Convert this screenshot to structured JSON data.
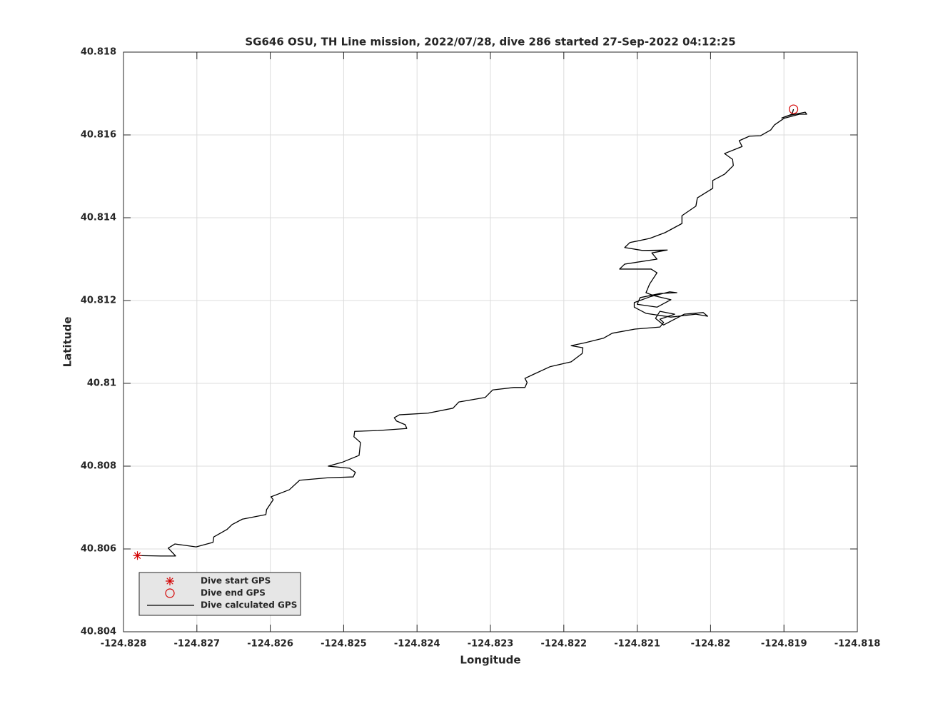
{
  "chart_data": {
    "type": "line",
    "title": "SG646 OSU, TH Line mission, 2022/07/28, dive 286 started 27-Sep-2022 04:12:25",
    "xlabel": "Longitude",
    "ylabel": "Latitude",
    "xlim": [
      -124.828,
      -124.818
    ],
    "ylim": [
      40.804,
      40.818
    ],
    "xticks": [
      -124.828,
      -124.827,
      -124.826,
      -124.825,
      -124.824,
      -124.823,
      -124.822,
      -124.821,
      -124.82,
      -124.819,
      -124.818
    ],
    "yticks": [
      40.804,
      40.806,
      40.808,
      40.81,
      40.812,
      40.814,
      40.816,
      40.818
    ],
    "grid": true,
    "legend": "southwest",
    "series": [
      {
        "name": "Dive start GPS",
        "color": "#d40000",
        "marker": "asterisk",
        "x": [
          -124.82781
        ],
        "values": [
          40.80584
        ]
      },
      {
        "name": "Dive end GPS",
        "color": "#d40000",
        "marker": "circle",
        "x": [
          -124.81887
        ],
        "values": [
          40.81662
        ]
      },
      {
        "name": "Dive calculated GPS",
        "color": "#000000",
        "x": [
          -124.82781,
          -124.82749,
          -124.82729,
          -124.82739,
          -124.8273,
          -124.82701,
          -124.82678,
          -124.82677,
          -124.82659,
          -124.82652,
          -124.82638,
          -124.82606,
          -124.82605,
          -124.82596,
          -124.82599,
          -124.82574,
          -124.8256,
          -124.82521,
          -124.82487,
          -124.82484,
          -124.82492,
          -124.82521,
          -124.82501,
          -124.82479,
          -124.82477,
          -124.82486,
          -124.82485,
          -124.82453,
          -124.82414,
          -124.82416,
          -124.82428,
          -124.82431,
          -124.82424,
          -124.82385,
          -124.82351,
          -124.82343,
          -124.82307,
          -124.82297,
          -124.82268,
          -124.82253,
          -124.8225,
          -124.82253,
          -124.82241,
          -124.82219,
          -124.8219,
          -124.82175,
          -124.82174,
          -124.8219,
          -124.82171,
          -124.82146,
          -124.82134,
          -124.82103,
          -124.82069,
          -124.82064,
          -124.82069,
          -124.82049,
          -124.82069,
          -124.82075,
          -124.82064,
          -124.82036,
          -124.8201,
          -124.82004,
          -124.8202,
          -124.82054,
          -124.82088,
          -124.82104,
          -124.82104,
          -124.82081,
          -124.82056,
          -124.82046,
          -124.82069,
          -124.82096,
          -124.821,
          -124.82073,
          -124.82054,
          -124.82078,
          -124.82088,
          -124.82083,
          -124.82073,
          -124.82081,
          -124.82124,
          -124.82117,
          -124.82073,
          -124.8208,
          -124.82059,
          -124.82093,
          -124.82117,
          -124.8211,
          -124.82083,
          -124.82062,
          -124.82039,
          -124.82039,
          -124.8202,
          -124.82018,
          -124.81997,
          -124.81997,
          -124.81981,
          -124.81969,
          -124.8197,
          -124.81981,
          -124.81957,
          -124.81961,
          -124.81947,
          -124.81932,
          -124.81918,
          -124.81913,
          -124.819,
          -124.81879,
          -124.81869,
          -124.81871,
          -124.81893,
          -124.81903,
          -124.81889,
          -124.81887
        ],
        "values": [
          40.80584,
          40.80583,
          40.80583,
          40.80602,
          40.80612,
          40.80605,
          40.80616,
          40.80629,
          40.80647,
          40.80659,
          40.80672,
          40.80683,
          40.80695,
          40.80719,
          40.80726,
          40.80743,
          40.80766,
          40.80772,
          40.80774,
          40.80785,
          40.80795,
          40.808,
          40.8081,
          40.80826,
          40.80857,
          40.80871,
          40.80884,
          40.80886,
          40.80891,
          40.809,
          40.80909,
          40.80917,
          40.80924,
          40.80928,
          40.8094,
          40.80955,
          40.80966,
          40.80984,
          40.8099,
          40.8099,
          40.81002,
          40.81012,
          40.81022,
          40.8104,
          40.81052,
          40.81072,
          40.81086,
          40.81091,
          40.81098,
          40.81109,
          40.81121,
          40.81131,
          40.81136,
          40.81147,
          40.81155,
          40.81167,
          40.81174,
          40.81157,
          40.81141,
          40.81167,
          40.81171,
          40.81162,
          40.81167,
          40.8116,
          40.81169,
          40.81184,
          40.81195,
          40.8121,
          40.81221,
          40.81219,
          40.81217,
          40.81207,
          40.81191,
          40.81184,
          40.81202,
          40.81212,
          40.81219,
          40.8124,
          40.81267,
          40.81276,
          40.81276,
          40.81288,
          40.813,
          40.81315,
          40.81322,
          40.81321,
          40.81328,
          40.8134,
          40.8135,
          40.81364,
          40.81386,
          40.81405,
          40.81428,
          40.81448,
          40.81471,
          40.8149,
          40.81505,
          40.81526,
          40.81541,
          40.81555,
          40.81572,
          40.81586,
          40.81597,
          40.81598,
          40.81612,
          40.81624,
          40.8164,
          40.8165,
          40.8165,
          40.81655,
          40.81647,
          40.81641,
          40.8165,
          40.81662
        ]
      }
    ]
  }
}
